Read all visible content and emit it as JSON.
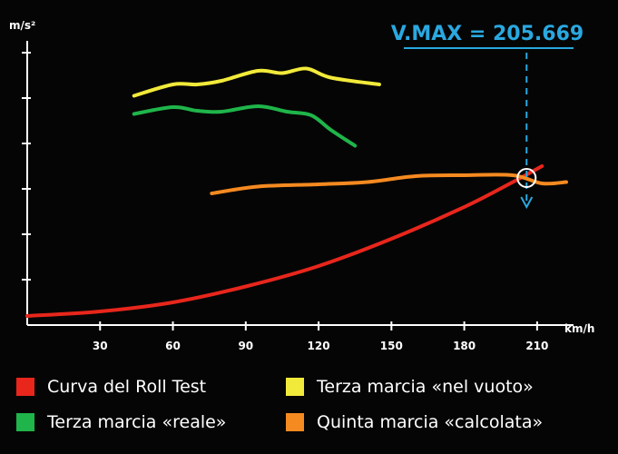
{
  "chart_data": {
    "type": "line",
    "xlabel": "km/h",
    "ylabel": "m/s²",
    "xlim": [
      0,
      225
    ],
    "ylim": [
      0,
      6
    ],
    "x_ticks": [
      30,
      60,
      90,
      120,
      150,
      180,
      210
    ],
    "y_ticks": [
      1,
      2,
      3,
      4,
      5,
      6
    ],
    "grid": false,
    "annotation": {
      "text": "V.MAX = 205.669",
      "x": 205.669,
      "color": "#2aa8e0"
    },
    "series": [
      {
        "name": "Curva del Roll Test",
        "color": "#e8261c",
        "x": [
          0,
          30,
          60,
          90,
          120,
          150,
          180,
          200,
          212
        ],
        "y": [
          0.2,
          0.3,
          0.5,
          0.85,
          1.3,
          1.9,
          2.6,
          3.15,
          3.5
        ]
      },
      {
        "name": "Terza marcia «reale»",
        "color": "#1fb54a",
        "x": [
          44,
          60,
          70,
          80,
          95,
          107,
          117,
          125,
          135
        ],
        "y": [
          4.65,
          4.8,
          4.72,
          4.7,
          4.82,
          4.7,
          4.62,
          4.3,
          3.95
        ]
      },
      {
        "name": "Terza marcia «nel vuoto»",
        "color": "#f2ea3a",
        "x": [
          44,
          60,
          70,
          80,
          95,
          105,
          115,
          125,
          145
        ],
        "y": [
          5.05,
          5.3,
          5.3,
          5.38,
          5.6,
          5.55,
          5.65,
          5.45,
          5.3
        ]
      },
      {
        "name": "Quinta marcia «calcolata»",
        "color": "#f58a20",
        "x": [
          76,
          95,
          120,
          140,
          160,
          180,
          200,
          212,
          222
        ],
        "y": [
          2.9,
          3.05,
          3.1,
          3.15,
          3.28,
          3.3,
          3.3,
          3.12,
          3.15
        ]
      }
    ]
  },
  "legend": [
    {
      "label": "Curva del Roll Test",
      "color": "#e8261c"
    },
    {
      "label": "Terza marcia «nel vuoto»",
      "color": "#f2ea3a"
    },
    {
      "label": "Terza marcia «reale»",
      "color": "#1fb54a"
    },
    {
      "label": "Quinta marcia «calcolata»",
      "color": "#f58a20"
    }
  ]
}
